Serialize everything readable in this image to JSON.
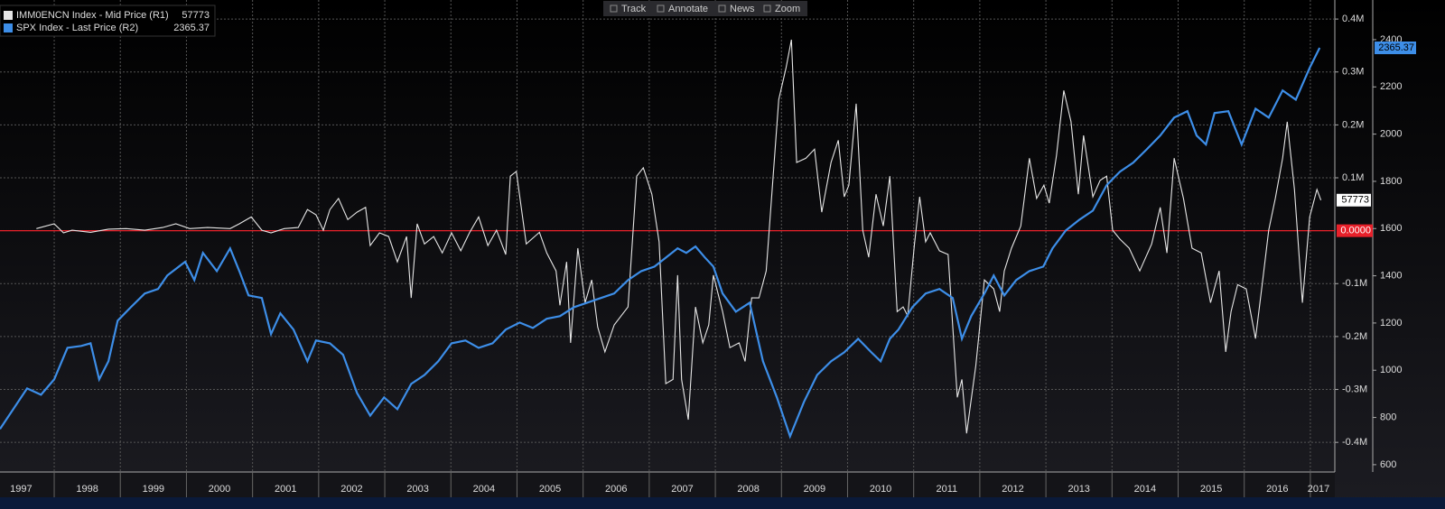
{
  "toolbar": [
    "Track",
    "Annotate",
    "News",
    "Zoom"
  ],
  "chart_data": {
    "type": "line",
    "xlim": [
      1997.18,
      2017.37
    ],
    "xticks": [
      1997,
      1998,
      1999,
      2000,
      2001,
      2002,
      2003,
      2004,
      2005,
      2006,
      2007,
      2008,
      2009,
      2010,
      2011,
      2012,
      2013,
      2014,
      2015,
      2016,
      2017
    ],
    "ylim": [
      -456000,
      436000
    ],
    "yticks": [
      {
        "value": 400000,
        "label": "0.4M"
      },
      {
        "value": 300000,
        "label": "0.3M"
      },
      {
        "value": 200000,
        "label": "0.2M"
      },
      {
        "value": 100000,
        "label": "0.1M"
      },
      {
        "value": -100000,
        "label": "-0.1M"
      },
      {
        "value": -200000,
        "label": "-0.2M"
      },
      {
        "value": -300000,
        "label": "-0.3M"
      },
      {
        "value": -400000,
        "label": "-0.4M"
      }
    ],
    "y2lim": [
      569,
      2568
    ],
    "y2ticks": [
      2400,
      2200,
      2000,
      1800,
      1600,
      1400,
      1200,
      1000,
      800,
      600
    ],
    "grid": true,
    "reference_line": {
      "value": 0,
      "label": "0.0000",
      "color": "#e8202a"
    },
    "series": [
      {
        "name": "IMM0ENCN Index - Mid Price (R1)",
        "color": "#e6e6e6",
        "axis": "y",
        "x": [
          1997.73,
          1998.0,
          1998.14,
          1998.27,
          1998.55,
          1998.82,
          1999.09,
          1999.37,
          1999.64,
          1999.84,
          2000.05,
          2000.32,
          2000.66,
          2000.8,
          2000.98,
          2001.14,
          2001.28,
          2001.48,
          2001.69,
          2001.83,
          2001.96,
          2002.07,
          2002.17,
          2002.3,
          2002.44,
          2002.58,
          2002.71,
          2002.78,
          2002.92,
          2003.06,
          2003.19,
          2003.33,
          2003.4,
          2003.49,
          2003.6,
          2003.74,
          2003.87,
          2004.01,
          2004.15,
          2004.28,
          2004.42,
          2004.56,
          2004.69,
          2004.83,
          2004.9,
          2004.99,
          2005.14,
          2005.34,
          2005.45,
          2005.59,
          2005.65,
          2005.75,
          2005.81,
          2005.92,
          2006.03,
          2006.13,
          2006.22,
          2006.33,
          2006.47,
          2006.68,
          2006.81,
          2006.91,
          2007.04,
          2007.15,
          2007.25,
          2007.36,
          2007.43,
          2007.49,
          2007.59,
          2007.7,
          2007.81,
          2007.9,
          2007.97,
          2008.11,
          2008.22,
          2008.36,
          2008.45,
          2008.55,
          2008.66,
          2008.77,
          2008.86,
          2008.96,
          2009.07,
          2009.15,
          2009.23,
          2009.37,
          2009.5,
          2009.61,
          2009.75,
          2009.86,
          2009.95,
          2010.02,
          2010.13,
          2010.23,
          2010.32,
          2010.43,
          2010.54,
          2010.64,
          2010.75,
          2010.84,
          2010.91,
          2011.01,
          2011.09,
          2011.18,
          2011.25,
          2011.39,
          2011.52,
          2011.66,
          2011.73,
          2011.8,
          2011.94,
          2012.07,
          2012.21,
          2012.3,
          2012.37,
          2012.48,
          2012.62,
          2012.75,
          2012.86,
          2012.97,
          2013.05,
          2013.16,
          2013.27,
          2013.38,
          2013.49,
          2013.57,
          2013.71,
          2013.82,
          2013.92,
          2014.01,
          2014.12,
          2014.26,
          2014.42,
          2014.6,
          2014.73,
          2014.83,
          2014.94,
          2015.08,
          2015.21,
          2015.35,
          2015.49,
          2015.62,
          2015.72,
          2015.8,
          2015.9,
          2016.03,
          2016.17,
          2016.28,
          2016.37,
          2016.47,
          2016.58,
          2016.65,
          2016.76,
          2016.88,
          2016.99,
          2017.1,
          2017.16
        ],
        "values": [
          4000,
          13000,
          -4000,
          1000,
          -3000,
          3000,
          4000,
          1000,
          6000,
          13000,
          4000,
          6000,
          4000,
          13000,
          26000,
          1000,
          -4000,
          4000,
          6000,
          40000,
          30000,
          1000,
          40000,
          61000,
          21000,
          35000,
          44000,
          -28000,
          -4000,
          -11000,
          -59000,
          -11000,
          -127000,
          13000,
          -25000,
          -11000,
          -42000,
          -4000,
          -38000,
          -4000,
          26000,
          -28000,
          1000,
          -45000,
          103000,
          112000,
          -25000,
          -3000,
          -42000,
          -76000,
          -141000,
          -59000,
          -212000,
          -33000,
          -136000,
          -93000,
          -182000,
          -229000,
          -178000,
          -144000,
          103000,
          119000,
          69000,
          -21000,
          -289000,
          -281000,
          -84000,
          -281000,
          -357000,
          -144000,
          -212000,
          -178000,
          -84000,
          -153000,
          -221000,
          -212000,
          -247000,
          -127000,
          -127000,
          -76000,
          78000,
          248000,
          308000,
          361000,
          129000,
          137000,
          154000,
          35000,
          129000,
          171000,
          64000,
          86000,
          240000,
          1000,
          -50000,
          69000,
          9000,
          103000,
          -153000,
          -144000,
          -161000,
          -28000,
          64000,
          -21000,
          -4000,
          -38000,
          -45000,
          -315000,
          -281000,
          -383000,
          -255000,
          -93000,
          -110000,
          -153000,
          -76000,
          -33000,
          9000,
          137000,
          61000,
          86000,
          52000,
          142000,
          265000,
          206000,
          69000,
          180000,
          64000,
          95000,
          103000,
          1000,
          -16000,
          -33000,
          -76000,
          -25000,
          44000,
          -42000,
          137000,
          61000,
          -33000,
          -42000,
          -136000,
          -76000,
          -229000,
          -153000,
          -102000,
          -110000,
          -204000,
          -93000,
          1000,
          61000,
          137000,
          206000,
          78000,
          -136000,
          26000,
          78000,
          57773
        ]
      },
      {
        "name": "SPX Index - Last Price (R2)",
        "color": "#3d8ee8",
        "axis": "y2",
        "x": [
          1997.18,
          1997.59,
          1997.8,
          1998.0,
          1998.2,
          1998.41,
          1998.55,
          1998.68,
          1998.82,
          1998.96,
          1999.16,
          1999.37,
          1999.57,
          1999.71,
          1999.98,
          2000.12,
          2000.25,
          2000.46,
          2000.66,
          2000.8,
          2000.94,
          2001.14,
          2001.28,
          2001.42,
          2001.62,
          2001.83,
          2001.96,
          2002.17,
          2002.37,
          2002.58,
          2002.78,
          2002.99,
          2003.19,
          2003.4,
          2003.6,
          2003.81,
          2004.01,
          2004.22,
          2004.42,
          2004.63,
          2004.83,
          2005.04,
          2005.24,
          2005.45,
          2005.65,
          2005.86,
          2006.06,
          2006.27,
          2006.47,
          2006.68,
          2006.88,
          2007.08,
          2007.29,
          2007.43,
          2007.56,
          2007.7,
          2007.84,
          2007.97,
          2008.11,
          2008.31,
          2008.52,
          2008.72,
          2008.93,
          2009.13,
          2009.34,
          2009.54,
          2009.75,
          2009.95,
          2010.16,
          2010.36,
          2010.5,
          2010.64,
          2010.77,
          2010.98,
          2011.18,
          2011.39,
          2011.59,
          2011.73,
          2011.87,
          2012.07,
          2012.21,
          2012.37,
          2012.55,
          2012.75,
          2012.96,
          2013.1,
          2013.3,
          2013.51,
          2013.71,
          2013.92,
          2014.12,
          2014.32,
          2014.53,
          2014.73,
          2014.94,
          2015.14,
          2015.28,
          2015.42,
          2015.55,
          2015.76,
          2015.96,
          2016.17,
          2016.37,
          2016.58,
          2016.78,
          2016.99,
          2017.14
        ],
        "values": [
          751,
          923,
          896,
          961,
          1095,
          1103,
          1114,
          961,
          1038,
          1210,
          1267,
          1325,
          1344,
          1401,
          1459,
          1382,
          1497,
          1420,
          1516,
          1420,
          1317,
          1306,
          1153,
          1241,
          1172,
          1038,
          1126,
          1114,
          1065,
          904,
          808,
          885,
          835,
          942,
          980,
          1038,
          1114,
          1126,
          1095,
          1114,
          1172,
          1202,
          1179,
          1218,
          1229,
          1267,
          1286,
          1306,
          1325,
          1382,
          1420,
          1439,
          1485,
          1516,
          1497,
          1524,
          1478,
          1439,
          1325,
          1248,
          1286,
          1038,
          885,
          720,
          866,
          980,
          1038,
          1076,
          1133,
          1076,
          1038,
          1133,
          1172,
          1267,
          1325,
          1344,
          1306,
          1133,
          1229,
          1325,
          1401,
          1317,
          1382,
          1420,
          1439,
          1516,
          1592,
          1638,
          1676,
          1784,
          1841,
          1879,
          1937,
          1994,
          2070,
          2097,
          1994,
          1956,
          2089,
          2097,
          1956,
          2108,
          2070,
          2185,
          2146,
          2281,
          2365.37
        ]
      }
    ]
  }
}
